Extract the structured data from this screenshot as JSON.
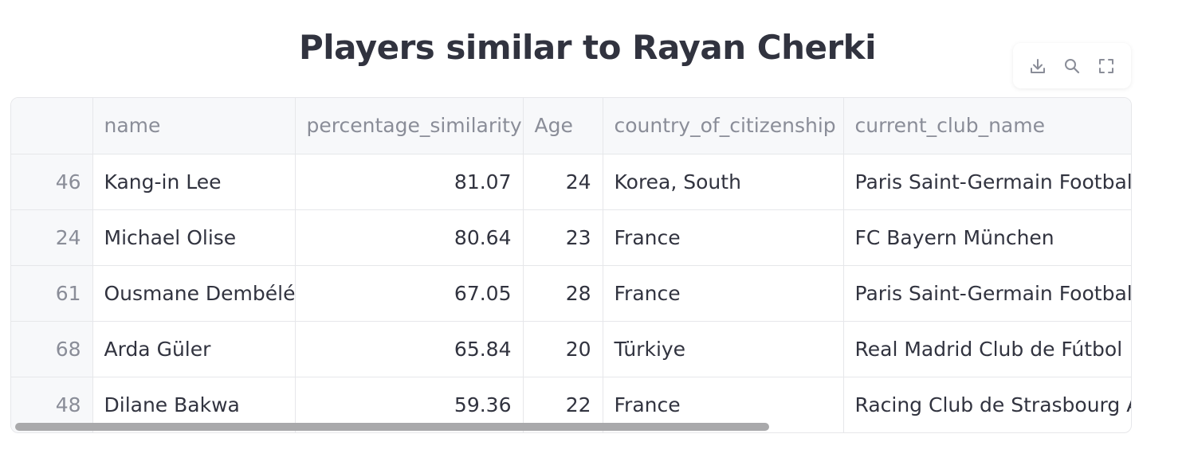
{
  "title": "Players similar to Rayan Cherki",
  "toolbar": {
    "download_icon": "download-icon",
    "search_icon": "search-icon",
    "fullscreen_icon": "fullscreen-icon",
    "icon_color": "#8a8d98"
  },
  "table": {
    "columns": [
      "",
      "name",
      "percentage_similarity",
      "Age",
      "country_of_citizenship",
      "current_club_name"
    ],
    "rows": [
      {
        "index": "46",
        "name": "Kang-in Lee",
        "percentage_similarity": "81.07",
        "age": "24",
        "country": "Korea, South",
        "club": "Paris Saint-Germain Football Club"
      },
      {
        "index": "24",
        "name": "Michael Olise",
        "percentage_similarity": "80.64",
        "age": "23",
        "country": "France",
        "club": "FC Bayern München"
      },
      {
        "index": "61",
        "name": "Ousmane Dembélé",
        "percentage_similarity": "67.05",
        "age": "28",
        "country": "France",
        "club": "Paris Saint-Germain Football Club"
      },
      {
        "index": "68",
        "name": "Arda Güler",
        "percentage_similarity": "65.84",
        "age": "20",
        "country": "Türkiye",
        "club": "Real Madrid Club de Fútbol"
      },
      {
        "index": "48",
        "name": "Dilane Bakwa",
        "percentage_similarity": "59.36",
        "age": "22",
        "country": "France",
        "club": "Racing Club de Strasbourg Alsace"
      }
    ]
  }
}
